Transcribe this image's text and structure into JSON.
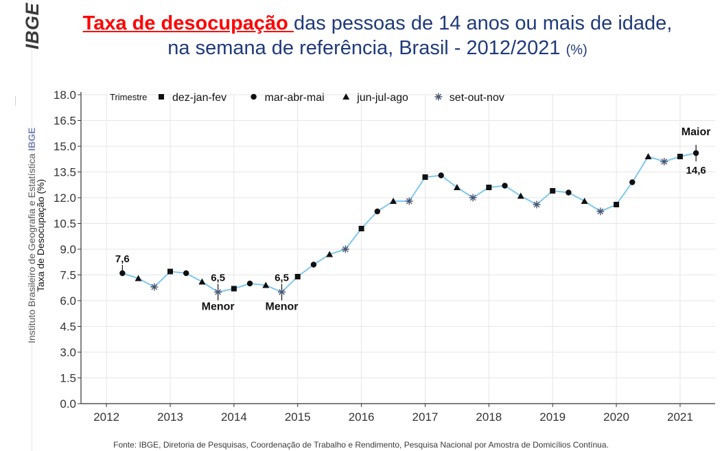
{
  "header": {
    "title_highlight": "Taxa de desocupação ",
    "title_rest": "das pessoas de 14 anos ou mais de idade,",
    "title_line2": "na semana de referência, Brasil - 2012/2021",
    "title_unit": "(%)"
  },
  "sidebar": {
    "logo_text": "IBGE",
    "institute_text": "Instituto Brasileiro de Geografia e Estatística",
    "institute_brand": "IBGE"
  },
  "footer": {
    "source": "Fonte: IBGE, Diretoria de Pesquisas, Coordenação de Trabalho e Rendimento, Pesquisa Nacional por Amostra de Domicílios Contínua."
  },
  "colors": {
    "line": "#7ec8ef",
    "marker": "#111111",
    "star": "#4a5570",
    "grid": "#e5e5e5",
    "axis": "#333333"
  },
  "chart_data": {
    "type": "line",
    "title": "Taxa de desocupação das pessoas de 14 anos ou mais de idade, na semana de referência, Brasil - 2012/2021 (%)",
    "xlabel": "",
    "ylabel": "Taxa de Desocupação (%)",
    "ylim": [
      0,
      18
    ],
    "xlim": [
      2011.6,
      2021.55
    ],
    "yticks": [
      0.0,
      1.5,
      3.0,
      4.5,
      6.0,
      7.5,
      9.0,
      10.5,
      12.0,
      13.5,
      15.0,
      16.5,
      18.0
    ],
    "ytick_labels": [
      "0.0",
      "1.5",
      "3.0",
      "4.5",
      "6.0",
      "7.5",
      "9.0",
      "10.5",
      "12.0",
      "13.5",
      "15.0",
      "16.5",
      "18.0"
    ],
    "xticks": [
      2012,
      2013,
      2014,
      2015,
      2016,
      2017,
      2018,
      2019,
      2020,
      2021
    ],
    "xtick_labels": [
      "2012",
      "2013",
      "2014",
      "2015",
      "2016",
      "2017",
      "2018",
      "2019",
      "2020",
      "2021"
    ],
    "grid": true,
    "legend_title": "Trimestre",
    "legend": [
      {
        "name": "dez-jan-fev",
        "shape": "square"
      },
      {
        "name": "mar-abr-mai",
        "shape": "circle"
      },
      {
        "name": "jun-jul-ago",
        "shape": "triangle"
      },
      {
        "name": "set-out-nov",
        "shape": "star"
      }
    ],
    "legend_position": "top-left",
    "points": [
      {
        "x": 2012.25,
        "y": 7.6,
        "shape": "circle"
      },
      {
        "x": 2012.5,
        "y": 7.3,
        "shape": "triangle"
      },
      {
        "x": 2012.75,
        "y": 6.8,
        "shape": "star"
      },
      {
        "x": 2013.0,
        "y": 7.7,
        "shape": "square"
      },
      {
        "x": 2013.25,
        "y": 7.6,
        "shape": "circle"
      },
      {
        "x": 2013.5,
        "y": 7.1,
        "shape": "triangle"
      },
      {
        "x": 2013.75,
        "y": 6.5,
        "shape": "star"
      },
      {
        "x": 2014.0,
        "y": 6.7,
        "shape": "square"
      },
      {
        "x": 2014.25,
        "y": 7.0,
        "shape": "circle"
      },
      {
        "x": 2014.5,
        "y": 6.9,
        "shape": "triangle"
      },
      {
        "x": 2014.75,
        "y": 6.5,
        "shape": "star"
      },
      {
        "x": 2015.0,
        "y": 7.4,
        "shape": "square"
      },
      {
        "x": 2015.25,
        "y": 8.1,
        "shape": "circle"
      },
      {
        "x": 2015.5,
        "y": 8.7,
        "shape": "triangle"
      },
      {
        "x": 2015.75,
        "y": 9.0,
        "shape": "star"
      },
      {
        "x": 2016.0,
        "y": 10.2,
        "shape": "square"
      },
      {
        "x": 2016.25,
        "y": 11.2,
        "shape": "circle"
      },
      {
        "x": 2016.5,
        "y": 11.8,
        "shape": "triangle"
      },
      {
        "x": 2016.75,
        "y": 11.8,
        "shape": "star"
      },
      {
        "x": 2017.0,
        "y": 13.2,
        "shape": "square"
      },
      {
        "x": 2017.25,
        "y": 13.3,
        "shape": "circle"
      },
      {
        "x": 2017.5,
        "y": 12.6,
        "shape": "triangle"
      },
      {
        "x": 2017.75,
        "y": 12.0,
        "shape": "star"
      },
      {
        "x": 2018.0,
        "y": 12.6,
        "shape": "square"
      },
      {
        "x": 2018.25,
        "y": 12.7,
        "shape": "circle"
      },
      {
        "x": 2018.5,
        "y": 12.1,
        "shape": "triangle"
      },
      {
        "x": 2018.75,
        "y": 11.6,
        "shape": "star"
      },
      {
        "x": 2019.0,
        "y": 12.4,
        "shape": "square"
      },
      {
        "x": 2019.25,
        "y": 12.3,
        "shape": "circle"
      },
      {
        "x": 2019.5,
        "y": 11.8,
        "shape": "triangle"
      },
      {
        "x": 2019.75,
        "y": 11.2,
        "shape": "star"
      },
      {
        "x": 2020.0,
        "y": 11.6,
        "shape": "square"
      },
      {
        "x": 2020.25,
        "y": 12.9,
        "shape": "circle"
      },
      {
        "x": 2020.5,
        "y": 14.4,
        "shape": "triangle"
      },
      {
        "x": 2020.75,
        "y": 14.1,
        "shape": "star"
      },
      {
        "x": 2021.0,
        "y": 14.4,
        "shape": "square"
      },
      {
        "x": 2021.25,
        "y": 14.6,
        "shape": "circle"
      }
    ],
    "annotations": [
      {
        "x": 2012.25,
        "y": 7.6,
        "value_label": "7,6",
        "value_side": "above",
        "tag": "",
        "tag_side": ""
      },
      {
        "x": 2013.75,
        "y": 6.5,
        "value_label": "6,5",
        "value_side": "above",
        "tag": "Menor",
        "tag_side": "below"
      },
      {
        "x": 2014.75,
        "y": 6.5,
        "value_label": "6,5",
        "value_side": "above",
        "tag": "Menor",
        "tag_side": "below"
      },
      {
        "x": 2021.25,
        "y": 14.6,
        "value_label": "14,6",
        "value_side": "below",
        "tag": "Maior",
        "tag_side": "above"
      }
    ]
  }
}
